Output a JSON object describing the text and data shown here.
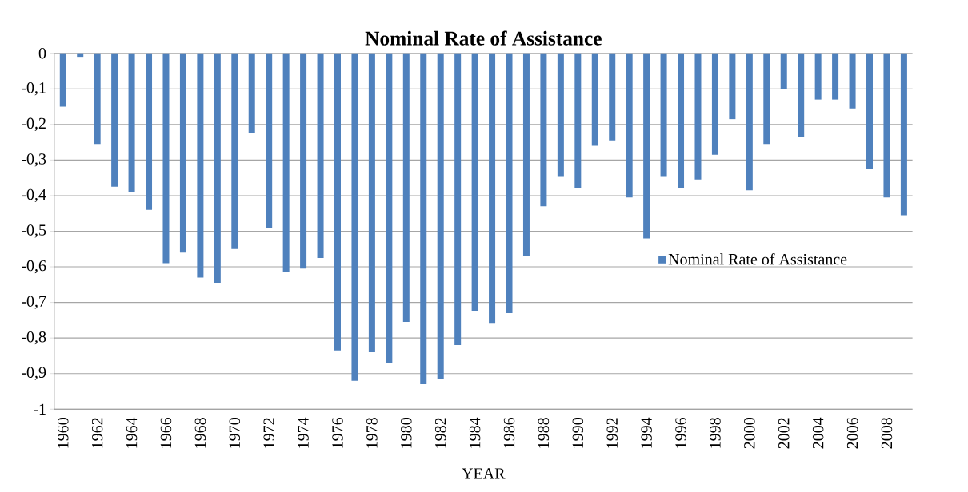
{
  "chart_data": {
    "type": "bar",
    "title": "Nominal Rate of Assistance",
    "xlabel": "YEAR",
    "categories": [
      "1960",
      null,
      "1962",
      null,
      "1964",
      null,
      "1966",
      null,
      "1968",
      null,
      "1970",
      null,
      "1972",
      null,
      "1974",
      null,
      "1976",
      null,
      "1978",
      null,
      "1980",
      null,
      "1982",
      null,
      "1984",
      null,
      "1986",
      null,
      "1988",
      null,
      "1990",
      null,
      "1992",
      null,
      "1994",
      null,
      "1996",
      null,
      "1998",
      null,
      "2000",
      null,
      "2002",
      null,
      "2004",
      null,
      "2006",
      null,
      "2008",
      null
    ],
    "series": [
      {
        "name": "Nominal Rate of Assistance",
        "color": "#4f81bd",
        "values": [
          -0.15,
          -0.01,
          -0.255,
          -0.375,
          -0.39,
          -0.44,
          -0.59,
          -0.56,
          -0.63,
          -0.645,
          -0.55,
          -0.225,
          -0.49,
          -0.615,
          -0.605,
          -0.575,
          -0.835,
          -0.92,
          -0.84,
          -0.87,
          -0.755,
          -0.93,
          -0.915,
          -0.82,
          -0.725,
          -0.76,
          -0.73,
          -0.57,
          -0.43,
          -0.345,
          -0.38,
          -0.26,
          -0.245,
          -0.405,
          -0.52,
          -0.345,
          -0.38,
          -0.355,
          -0.285,
          -0.185,
          -0.385,
          -0.255,
          -0.1,
          -0.235,
          -0.13,
          -0.13,
          -0.155,
          -0.325,
          -0.405,
          -0.455
        ]
      }
    ],
    "ylim": [
      -1,
      0
    ],
    "yticks": [
      0,
      {
        "value": -0.1,
        "label": "-0,1"
      },
      {
        "value": -0.2,
        "label": "-0,2"
      },
      {
        "value": -0.3,
        "label": "-0,3"
      },
      {
        "value": -0.4,
        "label": "-0,4"
      },
      {
        "value": -0.5,
        "label": "-0,5"
      },
      {
        "value": -0.6,
        "label": "-0,6"
      },
      {
        "value": -0.7,
        "label": "-0,7"
      },
      {
        "value": -0.8,
        "label": "-0,8"
      },
      {
        "value": -0.9,
        "label": "-0,9"
      },
      {
        "value": -1,
        "label": "-1"
      }
    ],
    "grid": "y",
    "legend": "right"
  }
}
